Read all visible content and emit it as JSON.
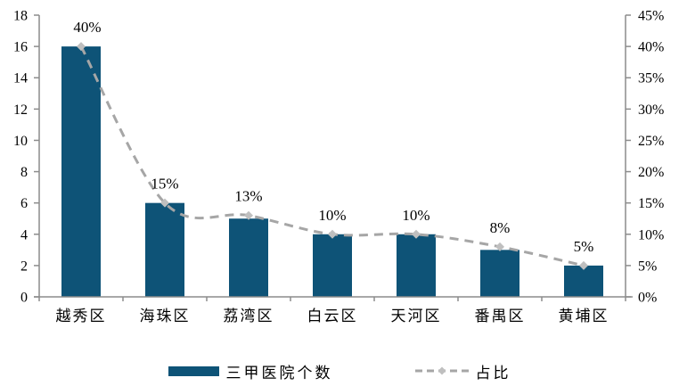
{
  "chart_data": {
    "type": "bar",
    "subtype": "bar+line-dual-axis",
    "categories": [
      "越秀区",
      "海珠区",
      "荔湾区",
      "白云区",
      "天河区",
      "番禺区",
      "黄埔区"
    ],
    "series": [
      {
        "name": "三甲医院个数",
        "type": "bar",
        "axis": "left",
        "values": [
          16,
          6,
          5,
          4,
          4,
          3,
          2
        ]
      },
      {
        "name": "占比",
        "type": "line",
        "axis": "right",
        "values": [
          40,
          15,
          13,
          10,
          10,
          8,
          5
        ],
        "point_labels": [
          "40%",
          "15%",
          "13%",
          "10%",
          "10%",
          "8%",
          "5%"
        ]
      }
    ],
    "title": "",
    "xlabel": "",
    "ylabel_left": "",
    "ylabel_right": "",
    "left_axis": {
      "min": 0,
      "max": 18,
      "step": 2,
      "ticks": [
        "0",
        "2",
        "4",
        "6",
        "8",
        "10",
        "12",
        "14",
        "16",
        "18"
      ]
    },
    "right_axis": {
      "min": 0,
      "max": 45,
      "step": 5,
      "ticks": [
        "0%",
        "5%",
        "10%",
        "15%",
        "20%",
        "25%",
        "30%",
        "35%",
        "40%",
        "45%"
      ]
    },
    "grid": "off",
    "legend_position": "bottom-center",
    "legend": [
      {
        "label": "三甲医院个数",
        "marker": "bar-swatch"
      },
      {
        "label": "占比",
        "marker": "dashed-line-diamond-swatch"
      }
    ],
    "colors": {
      "bar": "#0E5377",
      "line": "#A6A6A6",
      "marker": "#BFBFBF",
      "axis": "#8C8C8C",
      "text": "#000000",
      "background": "#FFFFFF"
    }
  }
}
